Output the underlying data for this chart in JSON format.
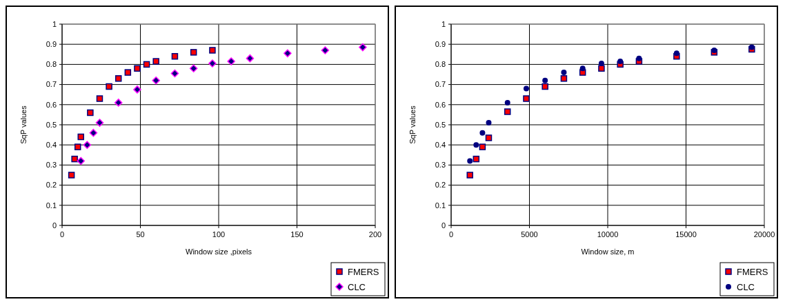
{
  "chart_data": [
    {
      "type": "scatter",
      "xlabel": "Window size ,pixels",
      "ylabel": "SqP values",
      "xlim": [
        0,
        200
      ],
      "xticks": [
        0,
        50,
        100,
        150,
        200
      ],
      "ylim": [
        0,
        1
      ],
      "yticks": [
        0,
        0.1,
        0.2,
        0.3,
        0.4,
        0.5,
        0.6,
        0.7,
        0.8,
        0.9,
        1
      ],
      "grid": true,
      "legend": "bottom right",
      "series": [
        {
          "name": "FMERS",
          "color": "#ff0000",
          "marker": "square",
          "x": [
            6,
            8,
            10,
            12,
            18,
            24,
            30,
            36,
            42,
            48,
            54,
            60,
            72,
            84,
            96
          ],
          "values": [
            0.25,
            0.33,
            0.39,
            0.44,
            0.56,
            0.63,
            0.69,
            0.73,
            0.76,
            0.78,
            0.8,
            0.815,
            0.84,
            0.86,
            0.87
          ]
        },
        {
          "name": "CLC",
          "color": "#ff00ff",
          "marker": "diamond",
          "x": [
            12,
            16,
            20,
            24,
            36,
            48,
            60,
            72,
            84,
            96,
            108,
            120,
            144,
            168,
            192
          ],
          "values": [
            0.32,
            0.4,
            0.46,
            0.51,
            0.61,
            0.675,
            0.72,
            0.755,
            0.78,
            0.805,
            0.815,
            0.83,
            0.855,
            0.87,
            0.885
          ]
        }
      ]
    },
    {
      "type": "scatter",
      "xlabel": "Window size, m",
      "ylabel": "SqP values",
      "xlim": [
        0,
        20000
      ],
      "xticks": [
        0,
        5000,
        10000,
        15000,
        20000
      ],
      "ylim": [
        0,
        1
      ],
      "yticks": [
        0,
        0.1,
        0.2,
        0.3,
        0.4,
        0.5,
        0.6,
        0.7,
        0.8,
        0.9,
        1
      ],
      "grid": true,
      "legend": "bottom right",
      "series": [
        {
          "name": "FMERS",
          "color": "#ff0000",
          "marker": "square",
          "x": [
            1200,
            1600,
            2000,
            2400,
            3600,
            4800,
            6000,
            7200,
            8400,
            9600,
            10800,
            12000,
            14400,
            16800,
            19200
          ],
          "values": [
            0.25,
            0.33,
            0.39,
            0.435,
            0.565,
            0.63,
            0.69,
            0.73,
            0.76,
            0.78,
            0.8,
            0.815,
            0.84,
            0.86,
            0.875
          ]
        },
        {
          "name": "CLC",
          "color": "#000080",
          "marker": "circle",
          "x": [
            1200,
            1600,
            2000,
            2400,
            3600,
            4800,
            6000,
            7200,
            8400,
            9600,
            10800,
            12000,
            14400,
            16800,
            19200
          ],
          "values": [
            0.32,
            0.4,
            0.46,
            0.51,
            0.61,
            0.68,
            0.72,
            0.76,
            0.78,
            0.805,
            0.815,
            0.83,
            0.855,
            0.87,
            0.885
          ]
        }
      ]
    }
  ]
}
